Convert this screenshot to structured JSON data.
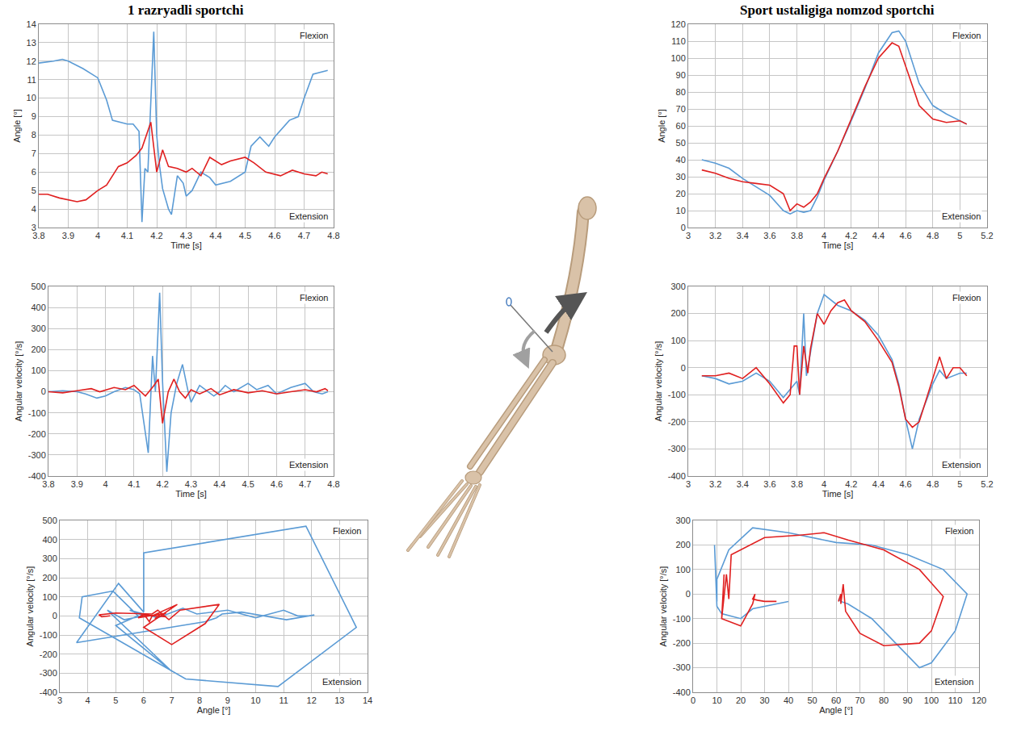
{
  "titles": [
    "1 razryadli sportchi",
    "Sport ustaligiga nomzod sportchi"
  ],
  "chart_data": [
    {
      "type": "line",
      "xlabel": "Time [s]",
      "ylabel": "Angle [°]",
      "annotations": [
        "Flexion",
        "Extension"
      ],
      "grid": true,
      "xlim": [
        3.8,
        4.8
      ],
      "xticks": [
        3.8,
        3.9,
        4,
        4.1,
        4.2,
        4.3,
        4.4,
        4.5,
        4.6,
        4.7,
        4.8
      ],
      "ylim": [
        3,
        14
      ],
      "yticks": [
        3,
        4,
        5,
        6,
        7,
        8,
        9,
        10,
        11,
        12,
        13,
        14
      ],
      "series": [
        {
          "color": "#5b9bd5",
          "x": [
            3.8,
            3.85,
            3.88,
            3.9,
            3.95,
            4.0,
            4.03,
            4.05,
            4.1,
            4.12,
            4.14,
            4.15,
            4.16,
            4.17,
            4.18,
            4.19,
            4.2,
            4.21,
            4.22,
            4.24,
            4.25,
            4.27,
            4.29,
            4.3,
            4.32,
            4.35,
            4.38,
            4.4,
            4.45,
            4.5,
            4.52,
            4.55,
            4.58,
            4.6,
            4.65,
            4.68,
            4.7,
            4.73,
            4.78
          ],
          "values": [
            11.9,
            12.0,
            12.1,
            12.0,
            11.6,
            11.1,
            9.9,
            8.8,
            8.6,
            8.6,
            8.2,
            3.3,
            6.2,
            6.0,
            9.8,
            13.6,
            8.0,
            6.3,
            5.1,
            4.0,
            3.7,
            5.8,
            5.4,
            4.7,
            5.0,
            6.0,
            5.7,
            5.3,
            5.5,
            6.0,
            7.4,
            7.9,
            7.4,
            7.9,
            8.8,
            9.0,
            10.0,
            11.3,
            11.5
          ]
        },
        {
          "color": "#e02020",
          "x": [
            3.8,
            3.83,
            3.87,
            3.9,
            3.93,
            3.96,
            4.0,
            4.03,
            4.07,
            4.1,
            4.13,
            4.15,
            4.18,
            4.2,
            4.22,
            4.24,
            4.27,
            4.3,
            4.32,
            4.35,
            4.38,
            4.42,
            4.45,
            4.5,
            4.53,
            4.57,
            4.62,
            4.66,
            4.7,
            4.74,
            4.76,
            4.78
          ],
          "values": [
            4.8,
            4.8,
            4.6,
            4.5,
            4.4,
            4.5,
            5.0,
            5.3,
            6.3,
            6.5,
            6.9,
            7.3,
            8.7,
            6.0,
            7.2,
            6.3,
            6.2,
            6.0,
            6.2,
            5.8,
            6.8,
            6.4,
            6.6,
            6.8,
            6.5,
            6.0,
            5.8,
            6.1,
            5.9,
            5.8,
            6.0,
            5.9
          ]
        }
      ]
    },
    {
      "type": "line",
      "xlabel": "Time [s]",
      "ylabel": "Angular velocity [°/s]",
      "annotations": [
        "Flexion",
        "Extension"
      ],
      "grid": true,
      "xlim": [
        3.8,
        4.8
      ],
      "xticks": [
        3.8,
        3.9,
        4,
        4.1,
        4.2,
        4.3,
        4.4,
        4.5,
        4.6,
        4.7,
        4.8
      ],
      "ylim": [
        -400,
        500
      ],
      "yticks": [
        -400,
        -300,
        -200,
        -100,
        0,
        100,
        200,
        300,
        400,
        500
      ],
      "series": [
        {
          "color": "#5b9bd5",
          "x": [
            3.8,
            3.85,
            3.9,
            3.93,
            3.97,
            4.0,
            4.03,
            4.07,
            4.1,
            4.12,
            4.15,
            4.165,
            4.175,
            4.19,
            4.2,
            4.215,
            4.23,
            4.25,
            4.27,
            4.29,
            4.3,
            4.33,
            4.36,
            4.38,
            4.4,
            4.42,
            4.45,
            4.5,
            4.53,
            4.57,
            4.6,
            4.65,
            4.7,
            4.73,
            4.76,
            4.78
          ],
          "values": [
            0,
            5,
            0,
            -10,
            -30,
            -20,
            0,
            20,
            10,
            -10,
            -290,
            170,
            0,
            470,
            50,
            -380,
            -100,
            40,
            130,
            0,
            -50,
            30,
            0,
            -20,
            0,
            30,
            0,
            40,
            10,
            30,
            -10,
            20,
            40,
            0,
            -10,
            0
          ]
        },
        {
          "color": "#e02020",
          "x": [
            3.8,
            3.85,
            3.9,
            3.95,
            3.98,
            4.03,
            4.07,
            4.1,
            4.14,
            4.17,
            4.185,
            4.2,
            4.22,
            4.24,
            4.26,
            4.28,
            4.3,
            4.33,
            4.37,
            4.4,
            4.45,
            4.5,
            4.55,
            4.6,
            4.65,
            4.7,
            4.74,
            4.77,
            4.78
          ],
          "values": [
            0,
            -5,
            5,
            15,
            0,
            20,
            10,
            30,
            -20,
            30,
            60,
            -150,
            0,
            60,
            0,
            -30,
            10,
            -10,
            15,
            -15,
            10,
            -5,
            5,
            -10,
            0,
            10,
            0,
            15,
            5
          ]
        }
      ]
    },
    {
      "type": "line",
      "xlabel": "Angle [°]",
      "ylabel": "Angular velocity [°/s]",
      "annotations": [
        "Flexion",
        "Extension"
      ],
      "grid": true,
      "xlim": [
        3,
        14
      ],
      "xticks": [
        3,
        4,
        5,
        6,
        7,
        8,
        9,
        10,
        11,
        12,
        13,
        14
      ],
      "ylim": [
        -400,
        500
      ],
      "yticks": [
        -400,
        -300,
        -200,
        -100,
        0,
        100,
        200,
        300,
        400,
        500
      ],
      "series": [
        {
          "color": "#5b9bd5",
          "x": [
            11.9,
            12.1,
            11.1,
            9.5,
            8.8,
            8.6,
            8.2,
            3.6,
            5.1,
            6.0,
            6.0,
            11.8,
            13.6,
            10.8,
            7.5,
            3.7,
            3.8,
            4.9,
            5.8,
            5.0,
            7.0,
            4.7,
            5.3,
            6.0,
            5.5,
            6.5,
            7.4,
            7.9,
            9.0,
            10.0,
            11.0,
            11.5,
            11.9
          ],
          "values": [
            0,
            5,
            -20,
            20,
            10,
            -10,
            -30,
            -140,
            170,
            20,
            330,
            470,
            -60,
            -370,
            -330,
            -10,
            100,
            130,
            0,
            -50,
            -290,
            30,
            -20,
            0,
            30,
            -10,
            40,
            10,
            30,
            -10,
            30,
            0,
            0
          ]
        },
        {
          "color": "#e02020",
          "x": [
            4.8,
            4.5,
            4.4,
            5.0,
            6.3,
            6.5,
            6.9,
            7.3,
            8.7,
            8.2,
            7.0,
            6.0,
            7.2,
            6.3,
            6.2,
            6.0,
            5.8,
            6.8,
            6.4,
            6.6,
            6.8,
            6.0,
            5.8,
            6.1,
            5.9,
            6.0
          ],
          "values": [
            0,
            -5,
            5,
            15,
            10,
            30,
            -20,
            30,
            60,
            -40,
            -150,
            -60,
            60,
            0,
            -30,
            10,
            -10,
            15,
            -15,
            10,
            -5,
            5,
            -10,
            0,
            10,
            5
          ]
        }
      ]
    },
    {
      "type": "line",
      "xlabel": "Time [s]",
      "ylabel": "Angle [°]",
      "annotations": [
        "Flexion",
        "Extension"
      ],
      "grid": true,
      "xlim": [
        3,
        5.2
      ],
      "xticks": [
        3,
        3.2,
        3.4,
        3.6,
        3.8,
        4,
        4.2,
        4.4,
        4.6,
        4.8,
        5,
        5.2
      ],
      "ylim": [
        0,
        120
      ],
      "yticks": [
        0,
        10,
        20,
        30,
        40,
        50,
        60,
        70,
        80,
        90,
        100,
        110,
        120
      ],
      "series": [
        {
          "color": "#5b9bd5",
          "x": [
            3.1,
            3.2,
            3.3,
            3.4,
            3.5,
            3.6,
            3.7,
            3.75,
            3.8,
            3.85,
            3.9,
            3.95,
            4.0,
            4.1,
            4.2,
            4.3,
            4.4,
            4.5,
            4.55,
            4.6,
            4.7,
            4.8,
            4.9,
            5.0,
            5.05
          ],
          "values": [
            40,
            38,
            35,
            29,
            24,
            19,
            10,
            8,
            10,
            9,
            10,
            18,
            28,
            45,
            63,
            82,
            103,
            115,
            116,
            110,
            85,
            72,
            67,
            63,
            61
          ]
        },
        {
          "color": "#e02020",
          "x": [
            3.1,
            3.2,
            3.3,
            3.4,
            3.5,
            3.6,
            3.7,
            3.75,
            3.8,
            3.85,
            3.9,
            3.95,
            4.0,
            4.1,
            4.2,
            4.3,
            4.4,
            4.5,
            4.55,
            4.6,
            4.7,
            4.8,
            4.85,
            4.9,
            5.0,
            5.05
          ],
          "values": [
            34,
            32,
            29,
            27,
            26,
            25,
            20,
            10,
            14,
            12,
            15,
            20,
            29,
            45,
            64,
            83,
            100,
            109,
            107,
            95,
            72,
            64,
            63,
            62,
            63,
            61
          ]
        }
      ]
    },
    {
      "type": "line",
      "xlabel": "Time [s]",
      "ylabel": "Angular velocity [°/s]",
      "annotations": [
        "Flexion",
        "Extension"
      ],
      "grid": true,
      "xlim": [
        3,
        5.2
      ],
      "xticks": [
        3,
        3.2,
        3.4,
        3.6,
        3.8,
        4,
        4.2,
        4.4,
        4.6,
        4.8,
        5,
        5.2
      ],
      "ylim": [
        -400,
        300
      ],
      "yticks": [
        -400,
        -300,
        -200,
        -100,
        0,
        100,
        200,
        300
      ],
      "series": [
        {
          "color": "#5b9bd5",
          "x": [
            3.1,
            3.2,
            3.3,
            3.4,
            3.5,
            3.6,
            3.7,
            3.75,
            3.8,
            3.82,
            3.85,
            3.87,
            3.9,
            3.95,
            4.0,
            4.05,
            4.1,
            4.2,
            4.3,
            4.4,
            4.5,
            4.55,
            4.6,
            4.65,
            4.7,
            4.8,
            4.85,
            4.9,
            5.0,
            5.05
          ],
          "values": [
            -30,
            -40,
            -60,
            -50,
            -20,
            -50,
            -110,
            -80,
            -50,
            -100,
            200,
            -30,
            60,
            200,
            270,
            250,
            230,
            210,
            175,
            120,
            30,
            -60,
            -190,
            -300,
            -190,
            -60,
            -10,
            -40,
            -20,
            -20
          ]
        },
        {
          "color": "#e02020",
          "x": [
            3.1,
            3.2,
            3.3,
            3.4,
            3.5,
            3.6,
            3.7,
            3.75,
            3.78,
            3.8,
            3.82,
            3.85,
            3.88,
            3.9,
            3.95,
            4.0,
            4.05,
            4.1,
            4.15,
            4.2,
            4.3,
            4.4,
            4.5,
            4.55,
            4.6,
            4.65,
            4.7,
            4.8,
            4.85,
            4.9,
            4.95,
            5.0,
            5.05
          ],
          "values": [
            -30,
            -30,
            -20,
            -40,
            0,
            -60,
            -130,
            -100,
            80,
            80,
            -100,
            80,
            -20,
            70,
            200,
            160,
            210,
            240,
            250,
            210,
            170,
            100,
            20,
            -70,
            -190,
            -220,
            -200,
            -40,
            40,
            -40,
            0,
            0,
            -30
          ]
        }
      ]
    },
    {
      "type": "line",
      "xlabel": "Angle [°]",
      "ylabel": "Angular velocity [°/s]",
      "annotations": [
        "Flexion",
        "Extension"
      ],
      "grid": true,
      "xlim": [
        0,
        120
      ],
      "xticks": [
        0,
        10,
        20,
        30,
        40,
        50,
        60,
        70,
        80,
        90,
        100,
        110,
        120
      ],
      "ylim": [
        -400,
        300
      ],
      "yticks": [
        -400,
        -300,
        -200,
        -100,
        0,
        100,
        200,
        300
      ],
      "series": [
        {
          "color": "#5b9bd5",
          "x": [
            40,
            35,
            30,
            25,
            20,
            12,
            10,
            9,
            10,
            10,
            15,
            25,
            40,
            60,
            75,
            90,
            105,
            115,
            110,
            100,
            95,
            85,
            75,
            65,
            62,
            61
          ],
          "values": [
            -30,
            -40,
            -50,
            -60,
            -100,
            -80,
            -50,
            200,
            -30,
            60,
            180,
            270,
            250,
            210,
            200,
            160,
            100,
            0,
            -150,
            -280,
            -300,
            -200,
            -100,
            -40,
            -30,
            -20
          ]
        },
        {
          "color": "#e02020",
          "x": [
            35,
            30,
            27,
            25,
            26,
            25,
            20,
            12,
            13,
            12,
            14,
            15,
            16,
            20,
            30,
            45,
            55,
            65,
            80,
            95,
            105,
            100,
            95,
            80,
            70,
            64,
            63,
            62,
            62,
            61
          ],
          "values": [
            -30,
            -30,
            -25,
            -20,
            0,
            -40,
            -130,
            -100,
            80,
            -100,
            80,
            -20,
            160,
            180,
            230,
            240,
            250,
            220,
            180,
            100,
            -10,
            -150,
            -200,
            -210,
            -160,
            -70,
            40,
            -40,
            0,
            -30
          ]
        }
      ]
    }
  ]
}
